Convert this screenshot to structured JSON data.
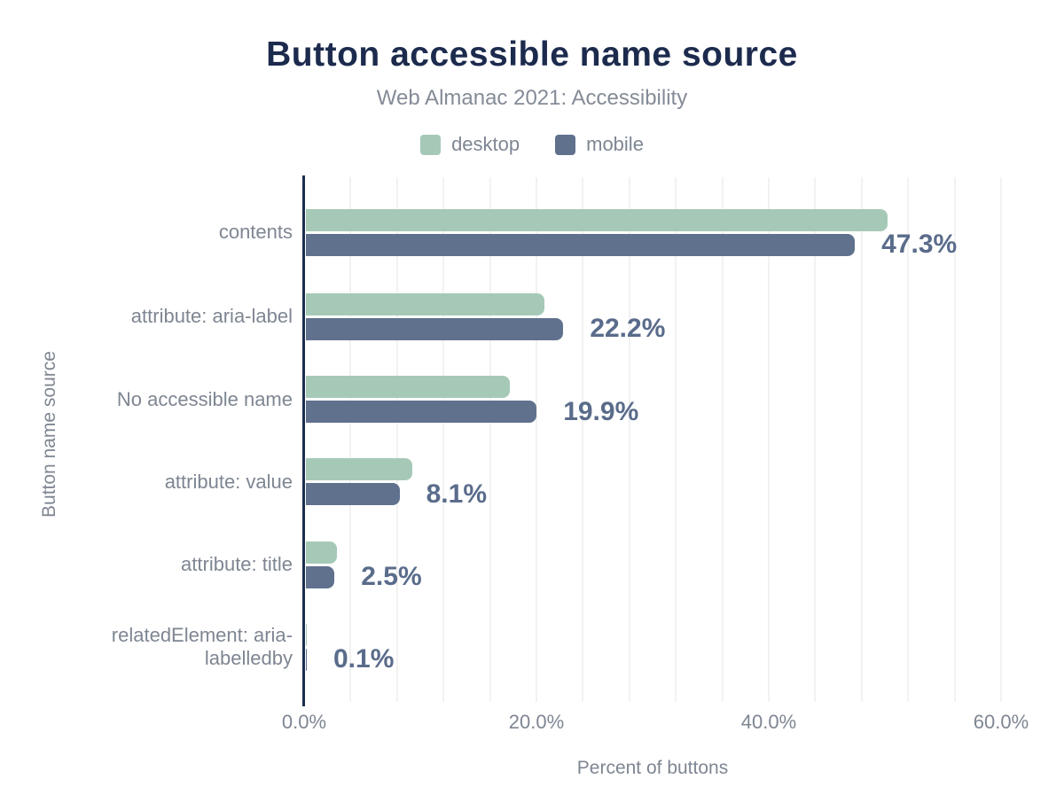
{
  "header": {
    "title": "Button accessible name source",
    "subtitle": "Web Almanac 2021: Accessibility"
  },
  "legend": [
    {
      "label": "desktop",
      "color": "#a6c9b7"
    },
    {
      "label": "mobile",
      "color": "#60718e"
    }
  ],
  "chart_data": {
    "type": "bar",
    "orientation": "horizontal",
    "title": "Button accessible name source",
    "subtitle": "Web Almanac 2021: Accessibility",
    "categories": [
      "contents",
      "attribute: aria-label",
      "No accessible name",
      "attribute: value",
      "attribute: title",
      "relatedElement: aria-labelledby"
    ],
    "series": [
      {
        "name": "desktop",
        "color": "#a6c9b7",
        "values": [
          50.1,
          20.6,
          17.6,
          9.2,
          2.7,
          0.1
        ]
      },
      {
        "name": "mobile",
        "color": "#60718e",
        "values": [
          47.3,
          22.2,
          19.9,
          8.1,
          2.5,
          0.1
        ]
      }
    ],
    "value_labels": [
      "47.3%",
      "22.2%",
      "19.9%",
      "8.1%",
      "2.5%",
      "0.1%"
    ],
    "value_labels_series": "mobile",
    "xlabel": "Percent of buttons",
    "ylabel": "Button name source",
    "x_ticks": [
      "0.0%",
      "20.0%",
      "40.0%",
      "60.0%"
    ],
    "x_tick_values": [
      0,
      20,
      40,
      60
    ],
    "xlim": [
      0,
      60
    ],
    "grid": "vertical minor gridlines every 4%",
    "legend_position": "top"
  },
  "colors": {
    "title": "#1c2b4d",
    "axis_line": "#1d2e4f",
    "gridline": "#f2f2f2",
    "gray_text": "#7e8692",
    "value_label": "#5a6c8b",
    "desktop_bar": "#a6c9b7",
    "mobile_bar": "#60718e",
    "background": "#ffffff"
  }
}
